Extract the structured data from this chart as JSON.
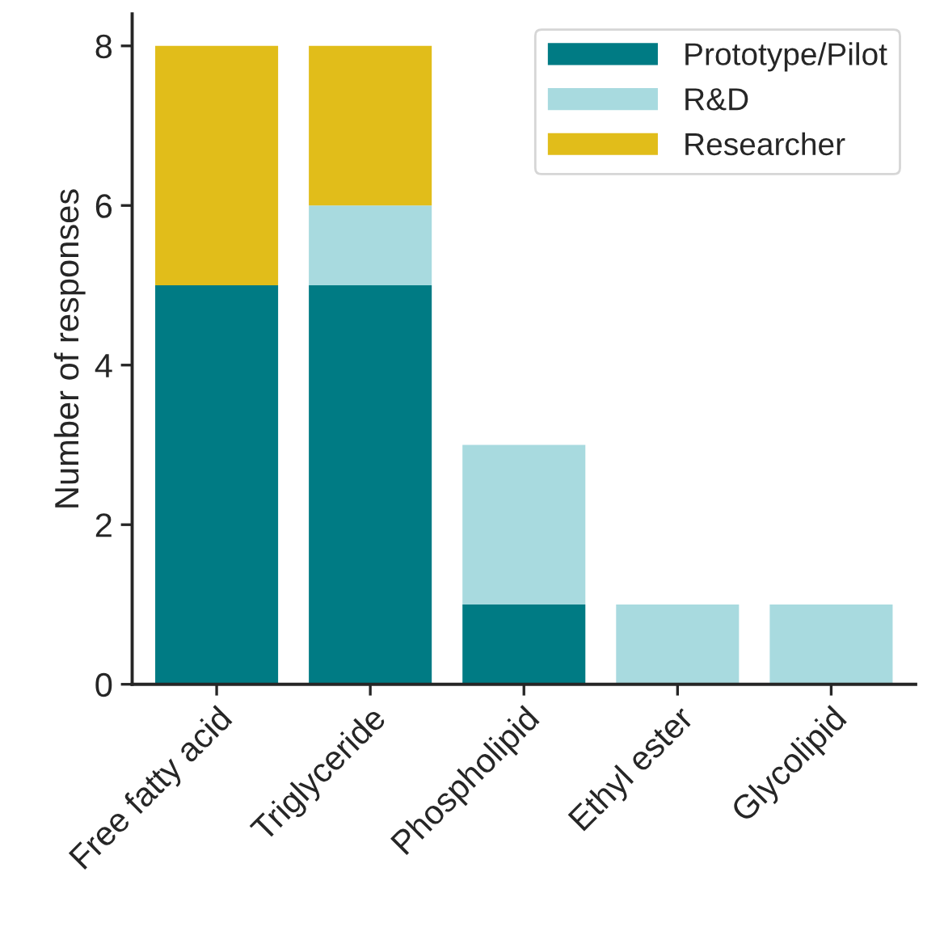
{
  "chart_data": {
    "type": "bar",
    "stacked": true,
    "ylabel": "Number of responses",
    "categories": [
      "Free fatty acid",
      "Triglyceride",
      "Phospholipid",
      "Ethyl ester",
      "Glycolipid"
    ],
    "series": [
      {
        "name": "Prototype/Pilot",
        "color": "#007b84",
        "values": [
          5,
          5,
          1,
          0,
          0
        ]
      },
      {
        "name": "R&D",
        "color": "#a8dadf",
        "values": [
          0,
          1,
          2,
          1,
          1
        ]
      },
      {
        "name": "Researcher",
        "color": "#e1bd1a",
        "values": [
          3,
          2,
          0,
          0,
          0
        ]
      }
    ],
    "ylim": [
      0,
      8.4
    ],
    "yticks": [
      0,
      2,
      4,
      6,
      8
    ],
    "grid": false,
    "legend": "top right"
  }
}
